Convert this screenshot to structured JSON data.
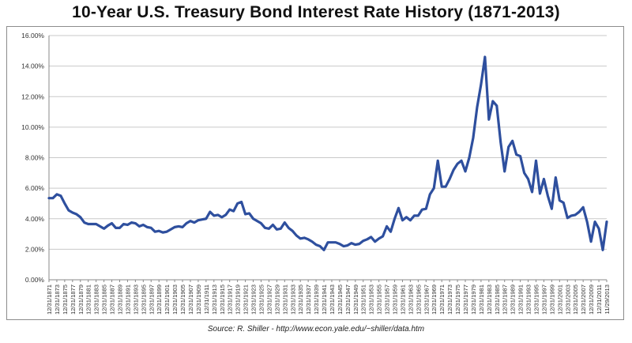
{
  "title": "10-Year U.S. Treasury Bond Interest Rate History (1871-2013)",
  "source": "Source: R. Shiller  -  http://www.econ.yale.edu/~shiller/data.htm",
  "chart_data": {
    "type": "line",
    "title": "10-Year U.S. Treasury Bond Interest Rate History (1871-2013)",
    "xlabel": "",
    "ylabel": "",
    "ylim": [
      0,
      16
    ],
    "y_ticks": [
      "0.00%",
      "2.00%",
      "4.00%",
      "6.00%",
      "8.00%",
      "10.00%",
      "12.00%",
      "14.00%",
      "16.00%"
    ],
    "grid": "horizontal",
    "line_color": "#2e4f9e",
    "x_tick_labels": [
      "12/31/1871",
      "12/31/1873",
      "12/31/1875",
      "12/31/1877",
      "12/31/1879",
      "12/31/1881",
      "12/31/1883",
      "12/31/1885",
      "12/31/1887",
      "12/31/1889",
      "12/31/1891",
      "12/31/1893",
      "12/31/1895",
      "12/31/1897",
      "12/31/1899",
      "12/31/1901",
      "12/31/1903",
      "12/31/1905",
      "12/31/1907",
      "12/31/1909",
      "12/31/1911",
      "12/31/1913",
      "12/31/1915",
      "12/31/1917",
      "12/31/1919",
      "12/31/1921",
      "12/31/1923",
      "12/31/1925",
      "12/31/1927",
      "12/31/1929",
      "12/31/1931",
      "12/31/1933",
      "12/31/1935",
      "12/31/1937",
      "12/31/1939",
      "12/31/1941",
      "12/31/1943",
      "12/31/1945",
      "12/31/1947",
      "12/31/1949",
      "12/31/1951",
      "12/31/1953",
      "12/31/1955",
      "12/31/1957",
      "12/31/1959",
      "12/31/1961",
      "12/31/1963",
      "12/31/1965",
      "12/31/1967",
      "12/31/1969",
      "12/31/1971",
      "12/31/1973",
      "12/31/1975",
      "12/31/1977",
      "12/31/1979",
      "12/31/1981",
      "12/31/1983",
      "12/31/1985",
      "12/31/1987",
      "12/31/1989",
      "12/31/1991",
      "12/31/1993",
      "12/31/1995",
      "12/31/1997",
      "12/31/1999",
      "12/31/2001",
      "12/31/2003",
      "12/31/2005",
      "12/31/2007",
      "12/31/2009",
      "12/31/2011",
      "11/29/2013"
    ],
    "series": [
      {
        "x": [
          1871,
          1872,
          1873,
          1874,
          1875,
          1876,
          1877,
          1878,
          1879,
          1880,
          1881,
          1882,
          1883,
          1884,
          1885,
          1886,
          1887,
          1888,
          1889,
          1890,
          1891,
          1892,
          1893,
          1894,
          1895,
          1896,
          1897,
          1898,
          1899,
          1900,
          1901,
          1902,
          1903,
          1904,
          1905,
          1906,
          1907,
          1908,
          1909,
          1910,
          1911,
          1912,
          1913,
          1914,
          1915,
          1916,
          1917,
          1918,
          1919,
          1920,
          1921,
          1922,
          1923,
          1924,
          1925,
          1926,
          1927,
          1928,
          1929,
          1930,
          1931,
          1932,
          1933,
          1934,
          1935,
          1936,
          1937,
          1938,
          1939,
          1940,
          1941,
          1942,
          1943,
          1944,
          1945,
          1946,
          1947,
          1948,
          1949,
          1950,
          1951,
          1952,
          1953,
          1954,
          1955,
          1956,
          1957,
          1958,
          1959,
          1960,
          1961,
          1962,
          1963,
          1964,
          1965,
          1966,
          1967,
          1968,
          1969,
          1970,
          1971,
          1972,
          1973,
          1974,
          1975,
          1976,
          1977,
          1978,
          1979,
          1980,
          1981,
          1982,
          1983,
          1984,
          1985,
          1986,
          1987,
          1988,
          1989,
          1990,
          1991,
          1992,
          1993,
          1994,
          1995,
          1996,
          1997,
          1998,
          1999,
          2000,
          2001,
          2002,
          2003,
          2004,
          2005,
          2006,
          2007,
          2008,
          2009,
          2010,
          2011,
          2012,
          2013
        ],
        "values": [
          5.35,
          5.35,
          5.6,
          5.5,
          5.0,
          4.55,
          4.4,
          4.3,
          4.1,
          3.75,
          3.65,
          3.65,
          3.65,
          3.5,
          3.35,
          3.55,
          3.7,
          3.4,
          3.4,
          3.65,
          3.6,
          3.75,
          3.7,
          3.5,
          3.6,
          3.45,
          3.4,
          3.15,
          3.2,
          3.1,
          3.15,
          3.3,
          3.45,
          3.5,
          3.45,
          3.7,
          3.85,
          3.75,
          3.9,
          3.95,
          4.0,
          4.45,
          4.2,
          4.25,
          4.1,
          4.25,
          4.6,
          4.5,
          5.0,
          5.1,
          4.3,
          4.35,
          4.0,
          3.85,
          3.7,
          3.4,
          3.35,
          3.6,
          3.3,
          3.35,
          3.75,
          3.4,
          3.2,
          2.9,
          2.7,
          2.75,
          2.65,
          2.5,
          2.3,
          2.2,
          1.95,
          2.45,
          2.45,
          2.45,
          2.35,
          2.2,
          2.25,
          2.4,
          2.3,
          2.35,
          2.55,
          2.65,
          2.8,
          2.5,
          2.7,
          2.85,
          3.5,
          3.15,
          4.0,
          4.7,
          3.9,
          4.1,
          3.9,
          4.2,
          4.2,
          4.6,
          4.65,
          5.6,
          6.0,
          7.8,
          6.1,
          6.1,
          6.6,
          7.2,
          7.6,
          7.8,
          7.1,
          8.0,
          9.3,
          11.3,
          12.8,
          14.6,
          10.5,
          11.7,
          11.4,
          9.0,
          7.1,
          8.7,
          9.1,
          8.2,
          8.1,
          7.0,
          6.6,
          5.75,
          7.8,
          5.65,
          6.6,
          5.5,
          4.65,
          6.7,
          5.2,
          5.05,
          4.05,
          4.2,
          4.25,
          4.45,
          4.75,
          3.8,
          2.5,
          3.8,
          3.35,
          1.95,
          3.8
        ]
      }
    ]
  }
}
